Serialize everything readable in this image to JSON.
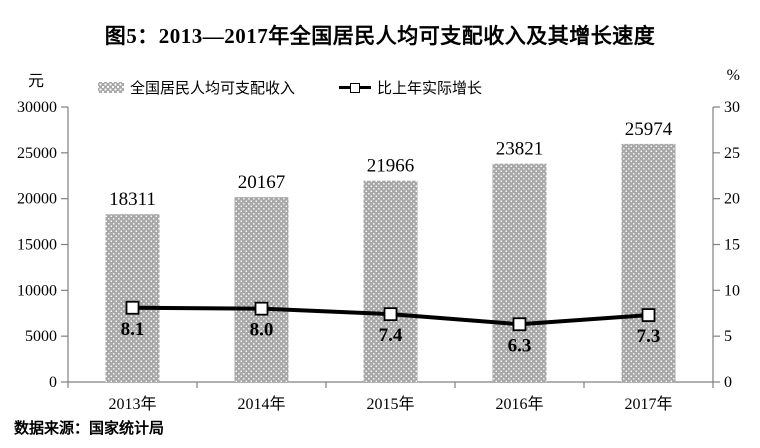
{
  "title": "图5：2013—2017年全国居民人均可支配收入及其增长速度",
  "units": {
    "left": "元",
    "right": "%"
  },
  "legend": {
    "bar_label": "全国居民人均可支配收入",
    "line_label": "比上年实际增长"
  },
  "source_note": "数据来源：国家统计局",
  "colors": {
    "bar_fill": "#a8a8a8",
    "bar_dot": "#ffffff",
    "line": "#000000",
    "marker_fill": "#ffffff",
    "marker_stroke": "#000000",
    "axis": "#808080",
    "text": "#000000"
  },
  "chart_data": {
    "type": "bar",
    "title": "图5：2013—2017年全国居民人均可支配收入及其增长速度",
    "categories": [
      "2013年",
      "2014年",
      "2015年",
      "2016年",
      "2017年"
    ],
    "series": [
      {
        "name": "全国居民人均可支配收入",
        "type": "bar",
        "axis": "left",
        "values": [
          18311,
          20167,
          21966,
          23821,
          25974
        ]
      },
      {
        "name": "比上年实际增长",
        "type": "line",
        "axis": "right",
        "values": [
          8.1,
          8.0,
          7.4,
          6.3,
          7.3
        ]
      }
    ],
    "left_axis": {
      "label": "元",
      "min": 0,
      "max": 30000,
      "step": 5000
    },
    "right_axis": {
      "label": "%",
      "min": 0,
      "max": 30,
      "step": 5
    },
    "grid": false,
    "legend_position": "top"
  }
}
